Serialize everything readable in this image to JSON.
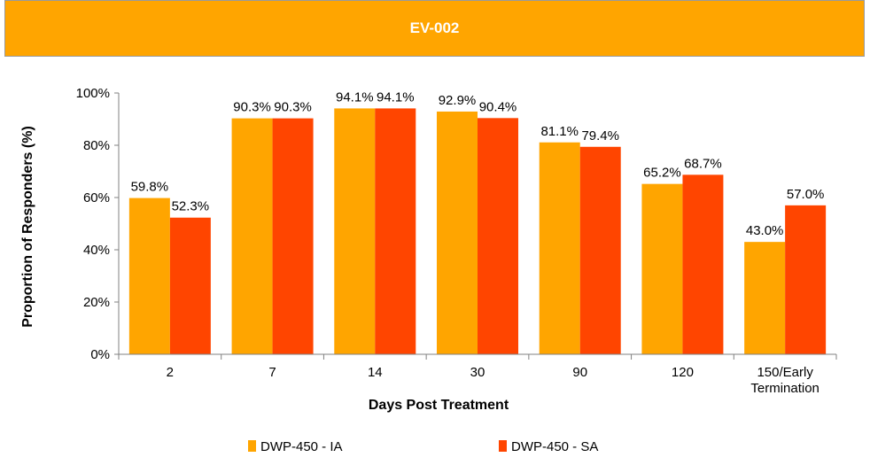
{
  "chart_data": {
    "type": "bar",
    "title": "EV-002",
    "xlabel": "Days Post Treatment",
    "ylabel": "Proportion of Responders (%)",
    "ylim": [
      0,
      100
    ],
    "yticks": [
      "0%",
      "20%",
      "40%",
      "60%",
      "80%",
      "100%"
    ],
    "grid": false,
    "legend_position": "bottom",
    "categories": [
      "2",
      "7",
      "14",
      "30",
      "90",
      "120",
      "150/Early Termination"
    ],
    "category_lines": [
      [
        "2"
      ],
      [
        "7"
      ],
      [
        "14"
      ],
      [
        "30"
      ],
      [
        "90"
      ],
      [
        "120"
      ],
      [
        "150/Early",
        "Termination"
      ]
    ],
    "series": [
      {
        "name": "DWP-450 - IA",
        "color": "#FFA500",
        "values": [
          59.8,
          90.3,
          94.1,
          92.9,
          81.1,
          65.2,
          43.0
        ],
        "labels": [
          "59.8%",
          "90.3%",
          "94.1%",
          "92.9%",
          "81.1%",
          "65.2%",
          "43.0%"
        ]
      },
      {
        "name": "DWP-450 - SA",
        "color": "#FF4500",
        "values": [
          52.3,
          90.3,
          94.1,
          90.4,
          79.4,
          68.7,
          57.0
        ],
        "labels": [
          "52.3%",
          "90.3%",
          "94.1%",
          "90.4%",
          "79.4%",
          "68.7%",
          "57.0%"
        ]
      }
    ]
  }
}
